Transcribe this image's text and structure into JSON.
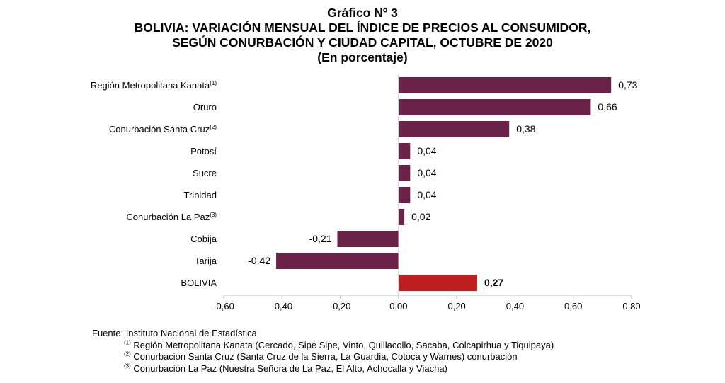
{
  "header": {
    "graph_number": "Gráfico Nº 3",
    "title_line1": "BOLIVIA: VARIACIÓN MENSUAL DEL ÍNDICE DE PRECIOS AL CONSUMIDOR,",
    "title_line2": "SEGÚN CONURBACIÓN Y CIUDAD CAPITAL, OCTUBRE DE 2020",
    "subtitle": "(En porcentaje)"
  },
  "chart_data": {
    "type": "bar",
    "orientation": "horizontal",
    "categories": [
      {
        "label": "Región Metropolitana Kanata",
        "sup": "(1)"
      },
      {
        "label": "Oruro",
        "sup": ""
      },
      {
        "label": "Conurbación Santa Cruz",
        "sup": "(2)"
      },
      {
        "label": "Potosí",
        "sup": ""
      },
      {
        "label": "Sucre",
        "sup": ""
      },
      {
        "label": "Trinidad",
        "sup": ""
      },
      {
        "label": "Conurbación La Paz",
        "sup": "(3)"
      },
      {
        "label": "Cobija",
        "sup": ""
      },
      {
        "label": "Tarija",
        "sup": ""
      },
      {
        "label": "BOLIVIA",
        "sup": ""
      }
    ],
    "values": [
      0.73,
      0.66,
      0.38,
      0.04,
      0.04,
      0.04,
      0.02,
      -0.21,
      -0.42,
      0.27
    ],
    "value_labels": [
      "0,73",
      "0,66",
      "0,38",
      "0,04",
      "0,04",
      "0,04",
      "0,02",
      "-0,21",
      "-0,42",
      "0,27"
    ],
    "highlight_index": 9,
    "colors": {
      "bar": "#6b2249",
      "highlight": "#be1e1e",
      "axis": "#bfbfbf"
    },
    "xlim": [
      -0.6,
      0.8
    ],
    "xticks": [
      -0.6,
      -0.4,
      -0.2,
      0.0,
      0.2,
      0.4,
      0.6,
      0.8
    ],
    "xtick_labels": [
      "-0,60",
      "-0,40",
      "-0,20",
      "0,00",
      "0,20",
      "0,40",
      "0,60",
      "0,80"
    ],
    "grid": false,
    "legend": "none"
  },
  "notes": {
    "source": "Fuente: Instituto Nacional de Estadística",
    "footnotes": [
      {
        "sup": "(1)",
        "text": "Región Metropolitana Kanata (Cercado, Sipe Sipe, Vinto, Quillacollo, Sacaba, Colcapirhua y Tiquipaya)"
      },
      {
        "sup": "(2)",
        "text": "Conurbación Santa Cruz (Santa Cruz de la Sierra, La Guardia, Cotoca y Warnes) conurbación"
      },
      {
        "sup": "(3)",
        "text": "Conurbación La Paz (Nuestra Señora de La Paz, El Alto, Achocalla y Viacha)"
      }
    ]
  }
}
